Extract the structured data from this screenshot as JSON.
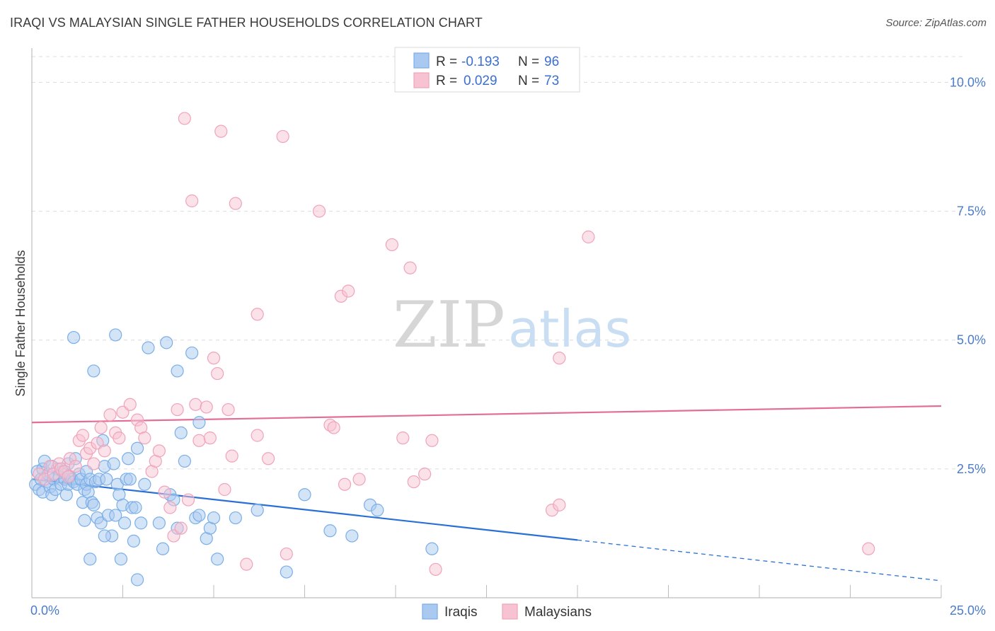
{
  "title": "IRAQI VS MALAYSIAN SINGLE FATHER HOUSEHOLDS CORRELATION CHART",
  "source": "Source: ZipAtlas.com",
  "watermark": {
    "zip": "ZIP",
    "atlas": "atlas"
  },
  "chart_data": {
    "type": "scatter",
    "xlabel": "",
    "ylabel": "Single Father Households",
    "xlim": [
      0,
      25
    ],
    "ylim": [
      0,
      10.5
    ],
    "x_tick_labels": [
      {
        "value": 0,
        "label": "0.0%"
      },
      {
        "value": 25,
        "label": "25.0%"
      }
    ],
    "y_tick_labels": [
      {
        "value": 2.5,
        "label": "2.5%"
      },
      {
        "value": 5.0,
        "label": "5.0%"
      },
      {
        "value": 7.5,
        "label": "7.5%"
      },
      {
        "value": 10.0,
        "label": "10.0%"
      }
    ],
    "legend": {
      "rows": [
        {
          "series": "Iraqis",
          "r_label": "R =",
          "r_value": "-0.193",
          "n_label": "N =",
          "n_value": "96"
        },
        {
          "series": "Malaysians",
          "r_label": "R =",
          "r_value": "0.029",
          "n_label": "N =",
          "n_value": "73"
        }
      ]
    },
    "series": [
      {
        "name": "Iraqis",
        "color": "#7aaee8",
        "fill": "#a9c9f0",
        "line_color": "#2a6fd6",
        "trend": {
          "x0": 0,
          "y0": 2.3,
          "x1": 15,
          "y1": 1.12,
          "dash_x1": 25,
          "dash_y1": 0.33
        },
        "points": [
          [
            0.1,
            2.2
          ],
          [
            0.15,
            2.45
          ],
          [
            0.2,
            2.1
          ],
          [
            0.25,
            2.3
          ],
          [
            0.3,
            2.5
          ],
          [
            0.3,
            2.05
          ],
          [
            0.35,
            2.65
          ],
          [
            0.4,
            2.25
          ],
          [
            0.45,
            2.4
          ],
          [
            0.5,
            2.15
          ],
          [
            0.55,
            2.0
          ],
          [
            0.6,
            2.3
          ],
          [
            0.65,
            2.1
          ],
          [
            0.7,
            2.5
          ],
          [
            0.75,
            2.35
          ],
          [
            0.8,
            2.2
          ],
          [
            0.85,
            2.45
          ],
          [
            0.9,
            2.3
          ],
          [
            0.95,
            2.0
          ],
          [
            1.0,
            2.2
          ],
          [
            1.0,
            2.6
          ],
          [
            1.05,
            2.35
          ],
          [
            1.1,
            2.3
          ],
          [
            1.15,
            2.25
          ],
          [
            1.2,
            2.7
          ],
          [
            1.25,
            2.2
          ],
          [
            1.3,
            2.4
          ],
          [
            1.35,
            2.3
          ],
          [
            1.4,
            1.85
          ],
          [
            1.45,
            2.1
          ],
          [
            1.5,
            2.45
          ],
          [
            1.5,
            2.2
          ],
          [
            1.55,
            2.05
          ],
          [
            1.6,
            2.3
          ],
          [
            1.65,
            1.85
          ],
          [
            1.7,
            1.8
          ],
          [
            1.75,
            2.25
          ],
          [
            1.8,
            1.55
          ],
          [
            1.85,
            2.3
          ],
          [
            1.9,
            1.45
          ],
          [
            1.95,
            3.05
          ],
          [
            2.0,
            2.55
          ],
          [
            2.05,
            2.3
          ],
          [
            2.1,
            1.6
          ],
          [
            2.2,
            1.2
          ],
          [
            2.25,
            2.6
          ],
          [
            2.3,
            1.6
          ],
          [
            2.35,
            2.2
          ],
          [
            2.4,
            2.0
          ],
          [
            2.5,
            1.8
          ],
          [
            2.55,
            1.45
          ],
          [
            2.6,
            2.3
          ],
          [
            2.65,
            2.7
          ],
          [
            2.7,
            2.3
          ],
          [
            2.75,
            1.75
          ],
          [
            2.8,
            1.1
          ],
          [
            2.85,
            1.75
          ],
          [
            2.9,
            2.9
          ],
          [
            3.0,
            1.45
          ],
          [
            3.1,
            2.2
          ],
          [
            3.2,
            4.85
          ],
          [
            3.5,
            1.45
          ],
          [
            3.6,
            0.95
          ],
          [
            3.8,
            2.0
          ],
          [
            3.9,
            1.9
          ],
          [
            4.0,
            1.35
          ],
          [
            4.1,
            3.2
          ],
          [
            4.2,
            2.65
          ],
          [
            4.5,
            1.55
          ],
          [
            4.6,
            1.6
          ],
          [
            4.8,
            1.15
          ],
          [
            4.9,
            1.35
          ],
          [
            5.1,
            0.75
          ],
          [
            5.6,
            1.55
          ],
          [
            6.2,
            1.7
          ],
          [
            7.0,
            0.5
          ],
          [
            7.5,
            2.0
          ],
          [
            8.2,
            1.3
          ],
          [
            8.8,
            1.2
          ],
          [
            9.3,
            1.8
          ],
          [
            9.5,
            1.7
          ],
          [
            11.0,
            0.95
          ],
          [
            1.15,
            5.05
          ],
          [
            1.7,
            4.4
          ],
          [
            2.3,
            5.1
          ],
          [
            3.7,
            4.95
          ],
          [
            4.0,
            4.4
          ],
          [
            4.4,
            4.75
          ],
          [
            4.6,
            3.4
          ],
          [
            2.9,
            0.35
          ],
          [
            1.6,
            0.75
          ],
          [
            2.45,
            0.75
          ],
          [
            1.45,
            1.5
          ],
          [
            2.0,
            1.2
          ],
          [
            5.0,
            1.55
          ],
          [
            0.55,
            2.55
          ]
        ]
      },
      {
        "name": "Malaysians",
        "color": "#f0a3bb",
        "fill": "#f7c3d2",
        "line_color": "#e46d98",
        "trend": {
          "x0": 0,
          "y0": 3.4,
          "x1": 25,
          "y1": 3.72
        },
        "points": [
          [
            0.2,
            2.4
          ],
          [
            0.35,
            2.3
          ],
          [
            0.5,
            2.55
          ],
          [
            0.6,
            2.4
          ],
          [
            0.75,
            2.6
          ],
          [
            0.8,
            2.5
          ],
          [
            0.9,
            2.45
          ],
          [
            1.0,
            2.35
          ],
          [
            1.05,
            2.7
          ],
          [
            1.2,
            2.55
          ],
          [
            1.3,
            3.05
          ],
          [
            1.4,
            3.15
          ],
          [
            1.5,
            2.8
          ],
          [
            1.6,
            2.9
          ],
          [
            1.7,
            2.6
          ],
          [
            1.8,
            3.0
          ],
          [
            1.9,
            3.3
          ],
          [
            2.0,
            2.85
          ],
          [
            2.15,
            3.55
          ],
          [
            2.3,
            3.2
          ],
          [
            2.4,
            3.1
          ],
          [
            2.5,
            3.6
          ],
          [
            2.7,
            3.75
          ],
          [
            2.9,
            3.45
          ],
          [
            3.0,
            3.3
          ],
          [
            3.1,
            3.1
          ],
          [
            3.3,
            2.45
          ],
          [
            3.4,
            2.65
          ],
          [
            3.5,
            2.85
          ],
          [
            3.65,
            2.05
          ],
          [
            3.8,
            1.75
          ],
          [
            3.9,
            1.2
          ],
          [
            4.0,
            3.65
          ],
          [
            4.1,
            1.35
          ],
          [
            4.3,
            1.9
          ],
          [
            4.5,
            3.75
          ],
          [
            4.6,
            3.05
          ],
          [
            4.8,
            3.7
          ],
          [
            4.9,
            3.1
          ],
          [
            5.0,
            4.65
          ],
          [
            5.1,
            4.35
          ],
          [
            5.3,
            2.1
          ],
          [
            5.4,
            3.65
          ],
          [
            5.5,
            2.75
          ],
          [
            5.6,
            7.65
          ],
          [
            5.9,
            0.65
          ],
          [
            6.2,
            3.15
          ],
          [
            6.5,
            2.7
          ],
          [
            7.0,
            0.85
          ],
          [
            8.2,
            3.35
          ],
          [
            8.3,
            3.3
          ],
          [
            8.6,
            2.2
          ],
          [
            9.0,
            2.3
          ],
          [
            10.2,
            3.1
          ],
          [
            10.5,
            2.25
          ],
          [
            10.8,
            2.4
          ],
          [
            11.0,
            3.05
          ],
          [
            11.1,
            0.55
          ],
          [
            4.4,
            7.7
          ],
          [
            6.9,
            8.95
          ],
          [
            4.2,
            9.3
          ],
          [
            5.2,
            9.05
          ],
          [
            7.9,
            7.5
          ],
          [
            9.9,
            6.85
          ],
          [
            10.4,
            6.4
          ],
          [
            8.5,
            5.85
          ],
          [
            8.7,
            5.95
          ],
          [
            6.2,
            5.5
          ],
          [
            15.3,
            7.0
          ],
          [
            14.5,
            4.65
          ],
          [
            14.3,
            1.7
          ],
          [
            14.5,
            1.8
          ],
          [
            23.0,
            0.95
          ]
        ]
      }
    ]
  },
  "bottom_legend": [
    {
      "label": "Iraqis"
    },
    {
      "label": "Malaysians"
    }
  ]
}
